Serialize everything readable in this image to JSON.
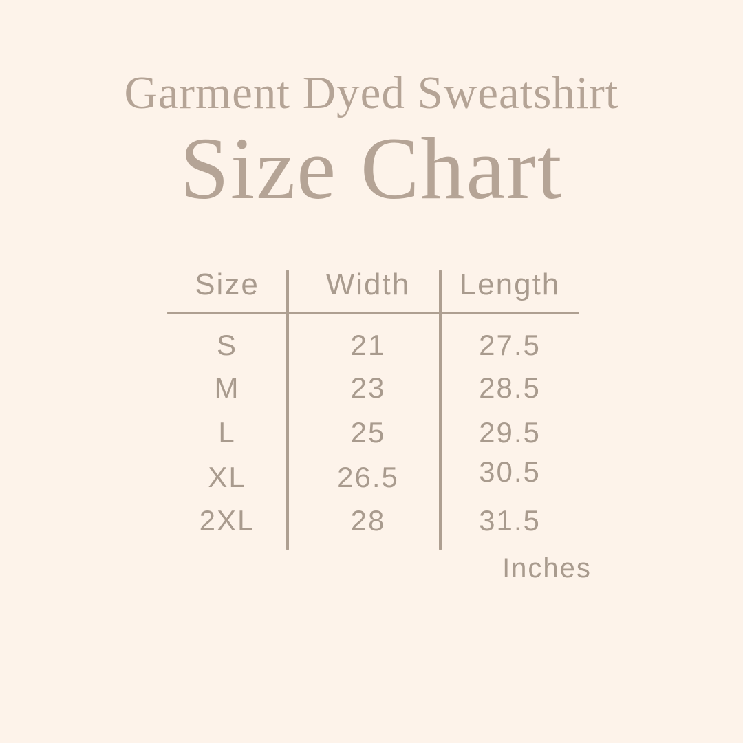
{
  "colors": {
    "bg": "#fdf3ea",
    "title": "#b5a496",
    "text": "#a99b8e",
    "line": "#ae9f91"
  },
  "header": {
    "product_name": "Garment Dyed Sweatshirt",
    "title": "Size Chart"
  },
  "table": {
    "headers": [
      "Size",
      "Width",
      "Length"
    ],
    "rows": [
      {
        "size": "S",
        "width": "21",
        "length": "27.5"
      },
      {
        "size": "M",
        "width": "23",
        "length": "28.5"
      },
      {
        "size": "L",
        "width": "25",
        "length": "29.5"
      },
      {
        "size": "XL",
        "width": "26.5",
        "length": "30.5"
      },
      {
        "size": "2XL",
        "width": "28",
        "length": "31.5"
      }
    ],
    "unit_label": "Inches"
  },
  "chart_data": {
    "type": "table",
    "title": "Garment Dyed Sweatshirt Size Chart",
    "columns": [
      "Size",
      "Width",
      "Length"
    ],
    "rows": [
      [
        "S",
        21,
        27.5
      ],
      [
        "M",
        23,
        28.5
      ],
      [
        "L",
        25,
        29.5
      ],
      [
        "XL",
        26.5,
        30.5
      ],
      [
        "2XL",
        28,
        31.5
      ]
    ],
    "unit": "Inches"
  }
}
